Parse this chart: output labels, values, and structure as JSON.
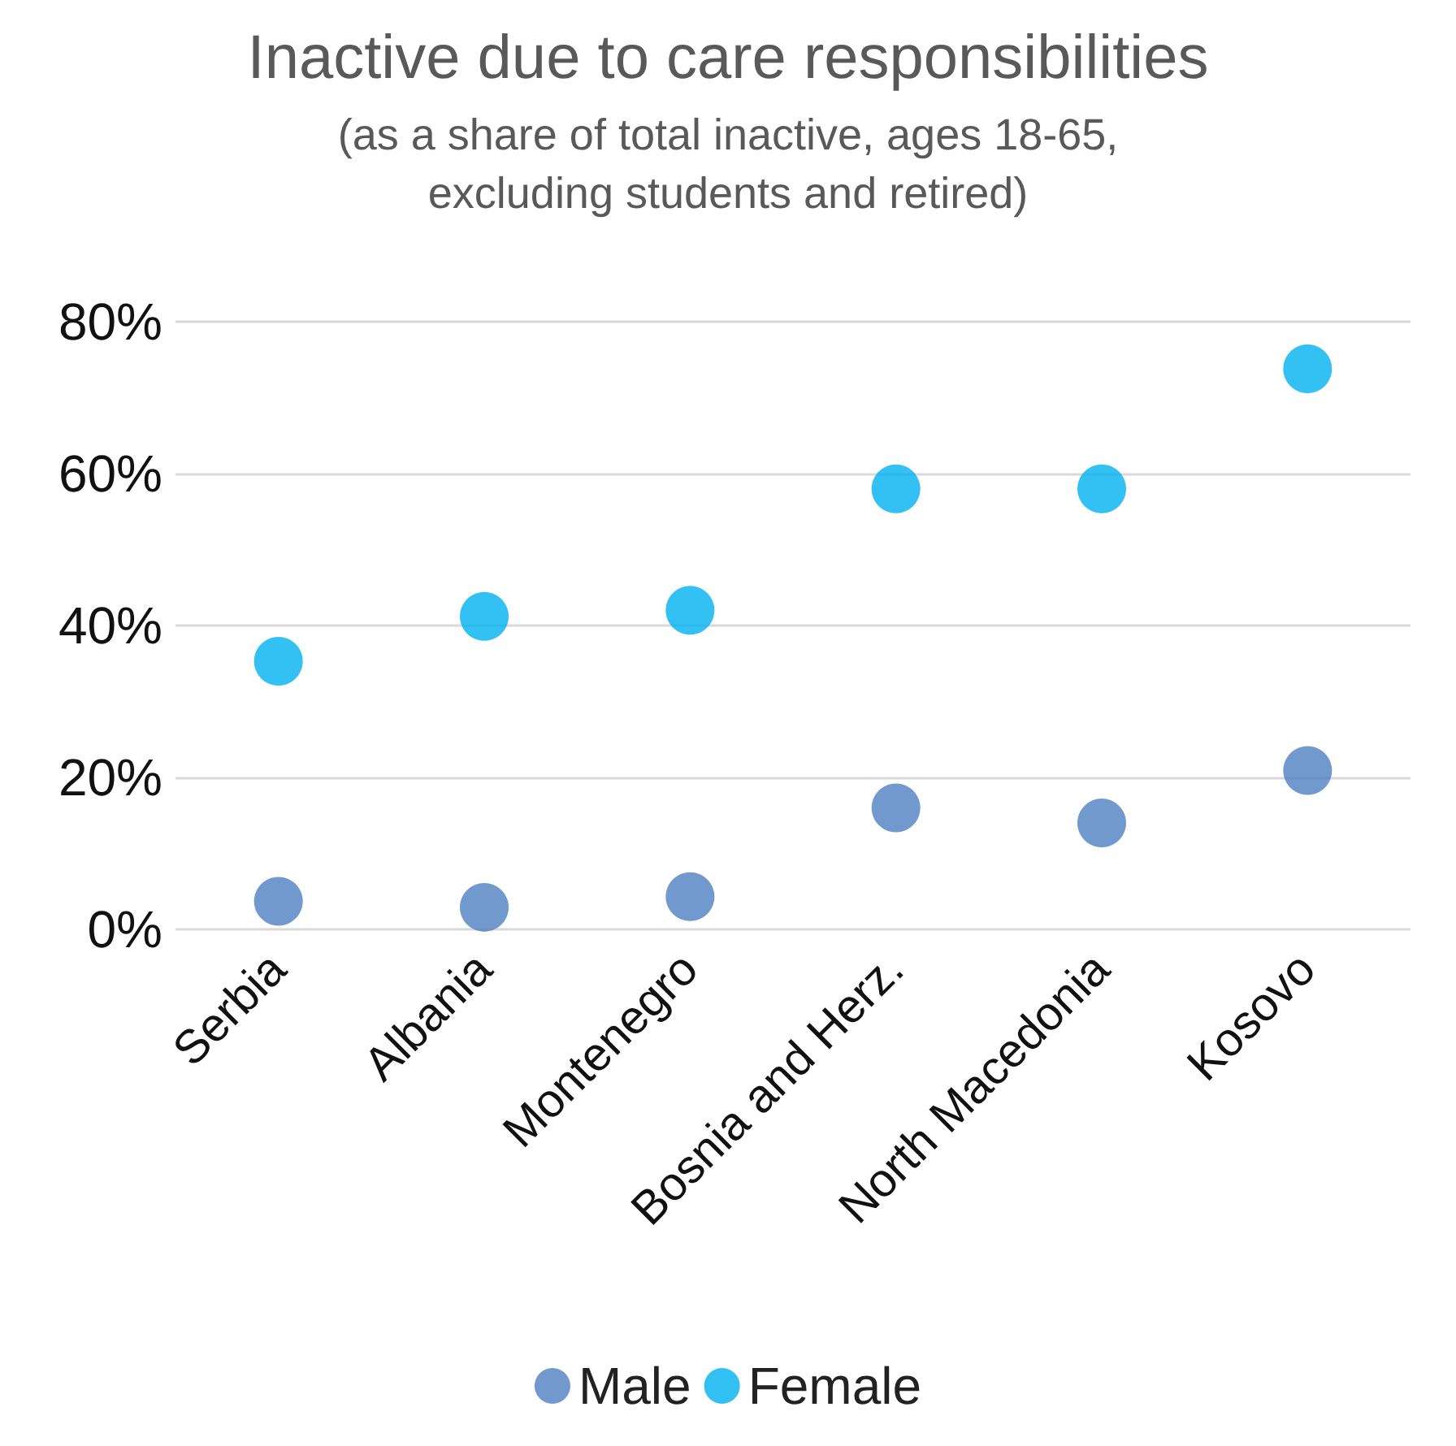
{
  "chart_data": {
    "type": "scatter",
    "title": "Inactive due to care responsibilities",
    "subtitle": "(as a share of total inactive, ages 18-65,\nexcluding students and retired)",
    "categories": [
      "Serbia",
      "Albania",
      "Montenegro",
      "Bosnia and Herz.",
      "North Macedonia",
      "Kosovo"
    ],
    "series": [
      {
        "name": "Male",
        "color": "#4f7fc0",
        "values": [
          3.7,
          2.9,
          4.3,
          16,
          14,
          20.9
        ]
      },
      {
        "name": "Female",
        "color": "#00b0f0",
        "values": [
          35.3,
          41.2,
          42,
          58,
          58,
          73.8
        ]
      }
    ],
    "ylim": [
      0,
      80
    ],
    "yticks": [
      {
        "value": 0,
        "label": "0%"
      },
      {
        "value": 20,
        "label": "20%"
      },
      {
        "value": 40,
        "label": "40%"
      },
      {
        "value": 60,
        "label": "60%"
      },
      {
        "value": 80,
        "label": "80%"
      }
    ],
    "grid": "y",
    "legend": "bottom",
    "marker": "circle"
  }
}
